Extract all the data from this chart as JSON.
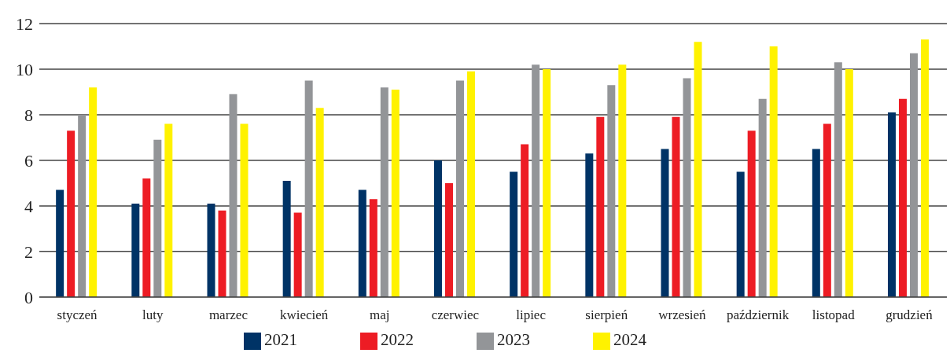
{
  "chart_data": {
    "type": "bar",
    "categories": [
      "styczeń",
      "luty",
      "marzec",
      "kwiecień",
      "maj",
      "czerwiec",
      "lipiec",
      "sierpień",
      "wrzesień",
      "październik",
      "listopad",
      "grudzień"
    ],
    "series": [
      {
        "name": "2021",
        "color": "#003366",
        "values": [
          4.7,
          4.1,
          4.1,
          5.1,
          4.7,
          6.0,
          5.5,
          6.3,
          6.5,
          5.5,
          6.5,
          8.1
        ]
      },
      {
        "name": "2022",
        "color": "#ed1c24",
        "values": [
          7.3,
          5.2,
          3.8,
          3.7,
          4.3,
          5.0,
          6.7,
          7.9,
          7.9,
          7.3,
          7.6,
          8.7
        ]
      },
      {
        "name": "2023",
        "color": "#939598",
        "values": [
          8.0,
          6.9,
          8.9,
          9.5,
          9.2,
          9.5,
          10.2,
          9.3,
          9.6,
          8.7,
          10.3,
          10.7
        ]
      },
      {
        "name": "2024",
        "color": "#fff200",
        "values": [
          9.2,
          7.6,
          7.6,
          8.3,
          9.1,
          9.9,
          10.0,
          10.2,
          11.2,
          11.0,
          10.0,
          11.3
        ]
      }
    ],
    "ylim": [
      0,
      12
    ],
    "yticks": [
      0,
      2,
      4,
      6,
      8,
      10,
      12
    ],
    "grid": "y",
    "legend": "bottom"
  }
}
